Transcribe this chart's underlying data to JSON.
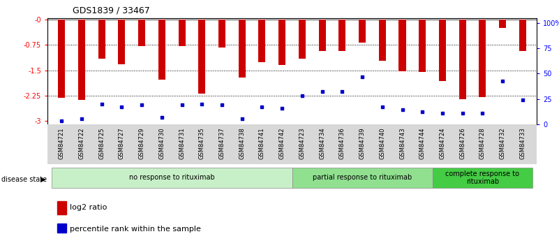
{
  "title": "GDS1839 / 33467",
  "samples": [
    "GSM84721",
    "GSM84722",
    "GSM84725",
    "GSM84727",
    "GSM84729",
    "GSM84730",
    "GSM84731",
    "GSM84735",
    "GSM84737",
    "GSM84738",
    "GSM84741",
    "GSM84742",
    "GSM84723",
    "GSM84734",
    "GSM84736",
    "GSM84739",
    "GSM84740",
    "GSM84743",
    "GSM84744",
    "GSM84724",
    "GSM84726",
    "GSM84728",
    "GSM84732",
    "GSM84733"
  ],
  "log2_ratio": [
    -2.32,
    -2.38,
    -1.15,
    -1.32,
    -0.78,
    -1.78,
    -0.79,
    -2.2,
    -0.82,
    -1.72,
    -1.25,
    -1.35,
    -1.15,
    -0.92,
    -0.92,
    -0.67,
    -1.22,
    -1.52,
    -1.55,
    -1.83,
    -2.35,
    -2.3,
    -0.25,
    -0.92
  ],
  "percentile_rank": [
    3,
    5,
    20,
    17,
    19,
    7,
    19,
    20,
    19,
    5,
    17,
    16,
    28,
    32,
    32,
    47,
    17,
    14,
    12,
    11,
    11,
    11,
    43,
    24
  ],
  "groups": [
    {
      "label": "no response to rituximab",
      "start": 0,
      "end": 12,
      "color": "#c8f0c8"
    },
    {
      "label": "partial response to rituximab",
      "start": 12,
      "end": 19,
      "color": "#90e090"
    },
    {
      "label": "complete response to\nrituximab",
      "start": 19,
      "end": 24,
      "color": "#44cc44"
    }
  ],
  "bar_color": "#cc0000",
  "dot_color": "#0000cc",
  "bar_width": 0.35,
  "ylim_left": [
    -3.1,
    0.05
  ],
  "yticks_left": [
    -3,
    -2.25,
    -1.5,
    -0.75,
    0
  ],
  "ytick_labels_left": [
    "-3",
    "-2.25",
    "-1.5",
    "-0.75",
    "-0"
  ],
  "yticks_right": [
    0,
    25,
    50,
    75,
    100
  ],
  "ytick_labels_right": [
    "0",
    "25",
    "50",
    "75",
    "100%"
  ],
  "title_fontsize": 9,
  "tick_fontsize": 7,
  "xtick_fontsize": 6
}
